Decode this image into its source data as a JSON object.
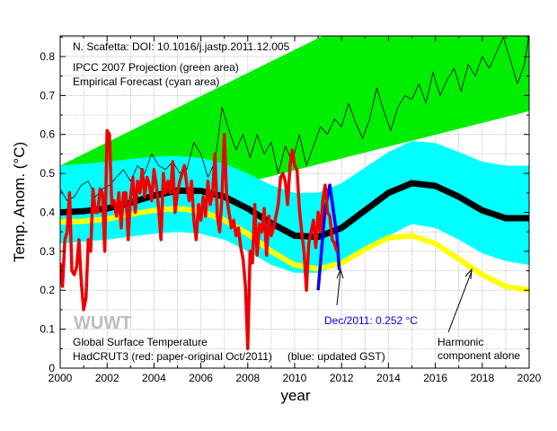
{
  "chart_data": {
    "type": "line",
    "title": "",
    "xlabel": "year",
    "ylabel": "Temp. Anom. (°C)",
    "xlim": [
      2000,
      2020
    ],
    "ylim": [
      0,
      0.853
    ],
    "grid": true,
    "x_ticks": [
      2000,
      2002,
      2004,
      2006,
      2008,
      2010,
      2012,
      2014,
      2016,
      2018,
      2020
    ],
    "x_tick_labels": [
      "2000",
      "2002",
      "2004",
      "2006",
      "2008",
      "2010",
      "2012",
      "2014",
      "2016",
      "2018",
      "2020"
    ],
    "y_ticks": [
      0,
      0.1,
      0.2,
      0.3,
      0.4,
      0.5,
      0.6,
      0.7,
      0.8
    ],
    "y_tick_labels": [
      "0",
      "0.1",
      "0.2",
      "0.3",
      "0.4",
      "0.5",
      "0.6",
      "0.7",
      "0.8"
    ],
    "annotations": {
      "citation": "N. Scafetta: DOI: 10.1016/j.jastp.2011.12.005",
      "legend_line1": "IPCC 2007 Projection (green area)",
      "legend_line2": "Empirical Forecast (cyan area)",
      "watermark": "WUWT",
      "dataset_line1": "Global Surface Temperature",
      "dataset_line2": "HadCRUT3 (red: paper-original Oct/2011)",
      "dataset_blue": "(blue: updated GST)",
      "dec_label": "Dec/2011: 0.252 °C",
      "harmonic_line1": "Harmonic",
      "harmonic_line2": "component alone"
    },
    "areas": [
      {
        "name": "IPCC 2007 Projection",
        "color": "#00ee00",
        "lower": {
          "x": [
            2000,
            2020
          ],
          "y": [
            0.356,
            0.66
          ]
        },
        "upper": {
          "x": [
            2000,
            2011.2,
            2020
          ],
          "y": [
            0.52,
            0.853,
            1.11
          ]
        }
      },
      {
        "name": "Empirical Forecast",
        "color": "#00ffff",
        "x": [
          2000,
          2001,
          2002,
          2003,
          2004,
          2005,
          2006,
          2007,
          2008,
          2009,
          2010,
          2011,
          2012,
          2013,
          2014,
          2015,
          2016,
          2017,
          2018,
          2019,
          2020
        ],
        "upper": [
          0.52,
          0.525,
          0.53,
          0.537,
          0.543,
          0.545,
          0.54,
          0.525,
          0.5,
          0.47,
          0.45,
          0.45,
          0.475,
          0.515,
          0.555,
          0.583,
          0.578,
          0.555,
          0.53,
          0.52,
          0.52
        ],
        "lower": [
          0.32,
          0.325,
          0.33,
          0.338,
          0.345,
          0.35,
          0.345,
          0.33,
          0.3,
          0.265,
          0.245,
          0.245,
          0.265,
          0.3,
          0.34,
          0.37,
          0.36,
          0.33,
          0.295,
          0.275,
          0.265
        ]
      }
    ],
    "series": [
      {
        "name": "Empirical model (black)",
        "color": "#000000",
        "x": [
          2000,
          2001,
          2002,
          2003,
          2004,
          2005,
          2006,
          2007,
          2008,
          2009,
          2010,
          2011,
          2012,
          2013,
          2014,
          2015,
          2016,
          2017,
          2018,
          2019,
          2020
        ],
        "y": [
          0.4,
          0.403,
          0.41,
          0.425,
          0.443,
          0.456,
          0.455,
          0.44,
          0.41,
          0.372,
          0.34,
          0.337,
          0.36,
          0.405,
          0.45,
          0.475,
          0.468,
          0.44,
          0.405,
          0.385,
          0.385
        ]
      },
      {
        "name": "Harmonic component alone (yellow)",
        "color": "#ffff00",
        "x": [
          2000,
          2001,
          2002,
          2003,
          2004,
          2005,
          2006,
          2007,
          2008,
          2009,
          2010,
          2011,
          2012,
          2013,
          2014,
          2015,
          2016,
          2017,
          2018,
          2019,
          2020
        ],
        "y": [
          0.375,
          0.377,
          0.383,
          0.395,
          0.405,
          0.41,
          0.403,
          0.38,
          0.345,
          0.3,
          0.265,
          0.255,
          0.27,
          0.305,
          0.335,
          0.34,
          0.32,
          0.28,
          0.24,
          0.21,
          0.2
        ]
      },
      {
        "name": "IPCC model (thin black)",
        "color": "#000000",
        "x": [
          2000,
          2000.3,
          2000.6,
          2000.9,
          2001.2,
          2001.5,
          2001.8,
          2002.1,
          2002.4,
          2002.7,
          2003.0,
          2003.3,
          2003.6,
          2003.9,
          2004.2,
          2004.5,
          2004.8,
          2005.1,
          2005.4,
          2005.7,
          2006.0,
          2006.3,
          2006.6,
          2006.9,
          2007.2,
          2007.5,
          2007.8,
          2008.1,
          2008.4,
          2008.7,
          2009.0,
          2009.3,
          2009.6,
          2009.9,
          2010.2,
          2010.5,
          2010.8,
          2011.1,
          2011.4,
          2011.7,
          2012.0,
          2012.3,
          2012.6,
          2012.9,
          2013.2,
          2013.5,
          2013.8,
          2014.1,
          2014.4,
          2014.7,
          2015.0,
          2015.3,
          2015.6,
          2015.9,
          2016.2,
          2016.5,
          2016.8,
          2017.1,
          2017.4,
          2017.7,
          2018.0,
          2018.3,
          2018.6,
          2018.9,
          2019.2,
          2019.5,
          2019.8,
          2020
        ],
        "y": [
          0.46,
          0.43,
          0.44,
          0.47,
          0.48,
          0.44,
          0.46,
          0.47,
          0.49,
          0.51,
          0.48,
          0.52,
          0.5,
          0.55,
          0.52,
          0.51,
          0.53,
          0.5,
          0.51,
          0.58,
          0.55,
          0.49,
          0.53,
          0.67,
          0.61,
          0.56,
          0.6,
          0.54,
          0.6,
          0.55,
          0.58,
          0.5,
          0.57,
          0.53,
          0.6,
          0.52,
          0.57,
          0.62,
          0.6,
          0.64,
          0.62,
          0.68,
          0.63,
          0.59,
          0.64,
          0.72,
          0.66,
          0.61,
          0.67,
          0.7,
          0.69,
          0.73,
          0.68,
          0.76,
          0.7,
          0.74,
          0.77,
          0.71,
          0.78,
          0.75,
          0.8,
          0.77,
          0.81,
          0.85,
          0.79,
          0.73,
          0.78,
          0.86
        ]
      },
      {
        "name": "HadCRUT3 paper-original (red)",
        "color": "#ee0000",
        "x": [
          2000.0,
          2000.1,
          2000.2,
          2000.3,
          2000.4,
          2000.5,
          2000.6,
          2000.7,
          2000.8,
          2000.9,
          2001.0,
          2001.1,
          2001.2,
          2001.3,
          2001.4,
          2001.5,
          2001.6,
          2001.7,
          2001.8,
          2001.9,
          2002.0,
          2002.1,
          2002.2,
          2002.3,
          2002.4,
          2002.5,
          2002.6,
          2002.7,
          2002.8,
          2002.9,
          2003.0,
          2003.1,
          2003.2,
          2003.3,
          2003.4,
          2003.5,
          2003.6,
          2003.7,
          2003.8,
          2003.9,
          2004.0,
          2004.1,
          2004.2,
          2004.3,
          2004.4,
          2004.5,
          2004.6,
          2004.7,
          2004.8,
          2004.9,
          2005.0,
          2005.1,
          2005.2,
          2005.3,
          2005.4,
          2005.5,
          2005.6,
          2005.7,
          2005.8,
          2005.9,
          2006.0,
          2006.1,
          2006.2,
          2006.3,
          2006.4,
          2006.5,
          2006.6,
          2006.7,
          2006.8,
          2006.9,
          2007.0,
          2007.1,
          2007.2,
          2007.3,
          2007.4,
          2007.5,
          2007.6,
          2007.7,
          2007.8,
          2007.9,
          2008.0,
          2008.1,
          2008.2,
          2008.3,
          2008.4,
          2008.5,
          2008.6,
          2008.7,
          2008.8,
          2008.9,
          2009.0,
          2009.1,
          2009.2,
          2009.3,
          2009.4,
          2009.5,
          2009.6,
          2009.7,
          2009.8,
          2009.9,
          2010.0,
          2010.1,
          2010.2,
          2010.3,
          2010.4,
          2010.5,
          2010.6,
          2010.7,
          2010.8,
          2010.9,
          2011.0,
          2011.1,
          2011.2,
          2011.3,
          2011.4,
          2011.5,
          2011.6,
          2011.7,
          2011.8
        ],
        "y": [
          0.27,
          0.21,
          0.33,
          0.35,
          0.45,
          0.25,
          0.24,
          0.26,
          0.33,
          0.22,
          0.15,
          0.18,
          0.33,
          0.3,
          0.46,
          0.4,
          0.4,
          0.46,
          0.45,
          0.3,
          0.61,
          0.6,
          0.42,
          0.43,
          0.39,
          0.45,
          0.36,
          0.45,
          0.45,
          0.33,
          0.44,
          0.49,
          0.4,
          0.48,
          0.45,
          0.51,
          0.44,
          0.49,
          0.47,
          0.43,
          0.51,
          0.47,
          0.41,
          0.33,
          0.5,
          0.45,
          0.48,
          0.45,
          0.53,
          0.4,
          0.45,
          0.48,
          0.5,
          0.52,
          0.47,
          0.43,
          0.48,
          0.38,
          0.33,
          0.42,
          0.38,
          0.44,
          0.39,
          0.48,
          0.42,
          0.45,
          0.55,
          0.39,
          0.35,
          0.44,
          0.6,
          0.44,
          0.4,
          0.36,
          0.38,
          0.34,
          0.36,
          0.31,
          0.28,
          0.21,
          0.05,
          0.3,
          0.27,
          0.42,
          0.29,
          0.37,
          0.35,
          0.41,
          0.29,
          0.39,
          0.34,
          0.36,
          0.39,
          0.42,
          0.49,
          0.5,
          0.48,
          0.42,
          0.52,
          0.56,
          0.52,
          0.51,
          0.41,
          0.35,
          0.3,
          0.2,
          0.32,
          0.35,
          0.38,
          0.31,
          0.4,
          0.35,
          0.43,
          0.47,
          0.4,
          0.39,
          0.33,
          0.32,
          0.3
        ]
      },
      {
        "name": "HadCRUT3 updated GST (blue)",
        "color": "#0000ee",
        "x": [
          2011.0,
          2011.3,
          2011.5,
          2011.8,
          2011.9
        ],
        "y": [
          0.2,
          0.41,
          0.47,
          0.34,
          0.252
        ]
      }
    ]
  }
}
